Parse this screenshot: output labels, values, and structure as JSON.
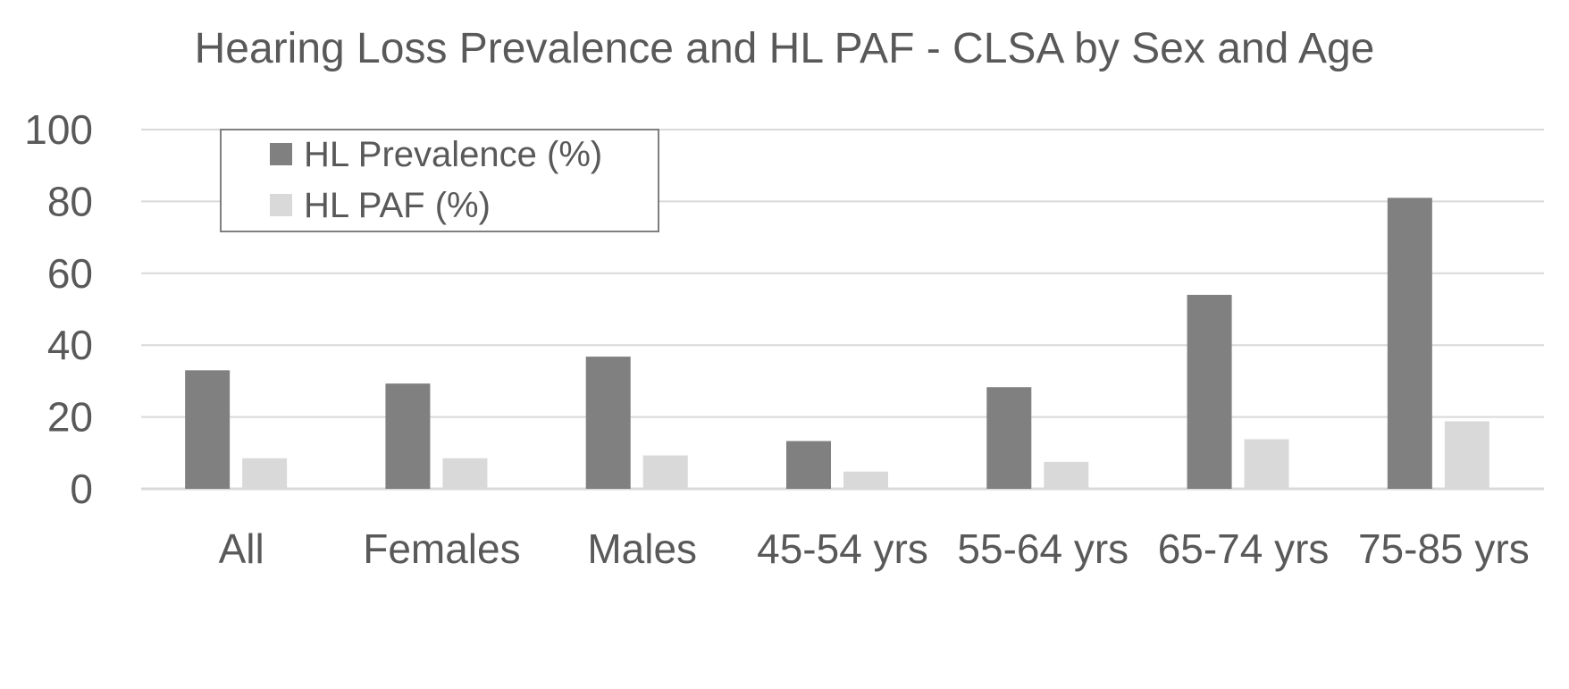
{
  "chart_data": {
    "type": "bar",
    "title": "Hearing Loss Prevalence and HL PAF - CLSA by Sex and Age",
    "xlabel": "",
    "ylabel": "",
    "categories": [
      "All",
      "Females",
      "Males",
      "45-54 yrs",
      "55-64 yrs",
      "65-74 yrs",
      "75-85 yrs"
    ],
    "series": [
      {
        "name": "HL Prevalence (%)",
        "color": "#808080",
        "values": [
          33,
          29.3,
          36.8,
          13.3,
          28.3,
          54,
          81
        ]
      },
      {
        "name": "HL PAF (%)",
        "color": "#d9d9d9",
        "values": [
          8.5,
          8.5,
          9.3,
          4.8,
          7.5,
          13.8,
          18.8
        ]
      }
    ],
    "ylim": [
      0,
      100
    ],
    "yticks": [
      "0",
      "20",
      "40",
      "60",
      "80",
      "100"
    ],
    "grid": true,
    "legend_position": "top-left"
  },
  "colors": {
    "text": "#595959",
    "gridline": "#d9d9d9",
    "legend_border": "#7f7f7f"
  }
}
